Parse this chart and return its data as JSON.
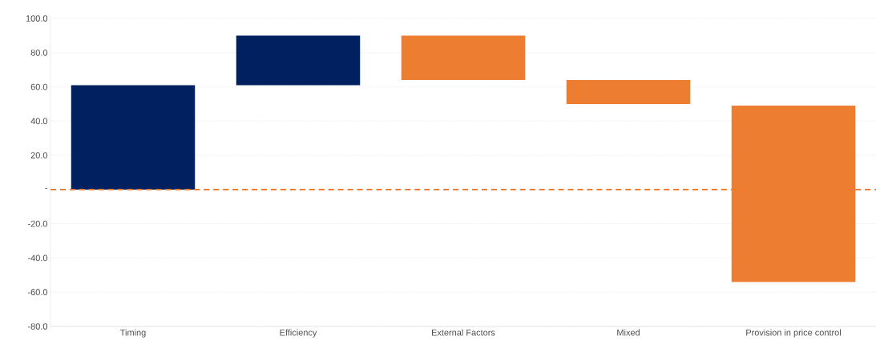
{
  "chart_data": {
    "type": "bar",
    "categories": [
      "Timing",
      "Efficiency",
      "External Factors",
      "Mixed",
      "Provision in price control"
    ],
    "values": [
      61,
      29,
      -26,
      -14,
      -103
    ],
    "base": [
      0,
      61,
      90,
      64,
      49
    ],
    "colors": [
      "#002060",
      "#002060",
      "#ed7d31",
      "#ed7d31",
      "#ed7d31"
    ],
    "ylim": [
      -80,
      100
    ],
    "yticks": [
      {
        "value": -80,
        "label": "-80.0"
      },
      {
        "value": -60,
        "label": "-60.0"
      },
      {
        "value": -40,
        "label": "-40.0"
      },
      {
        "value": -20,
        "label": "-20.0"
      },
      {
        "value": 0,
        "label": "-"
      },
      {
        "value": 20,
        "label": "20.0"
      },
      {
        "value": 40,
        "label": "40.0"
      },
      {
        "value": 60,
        "label": "60.0"
      },
      {
        "value": 80,
        "label": "80.0"
      },
      {
        "value": 100,
        "label": "100.0"
      }
    ],
    "grid": "y",
    "ref_lines": [
      {
        "axis": "y",
        "value": 0,
        "color": "#ed7d31",
        "line_style": "dashed"
      }
    ]
  }
}
